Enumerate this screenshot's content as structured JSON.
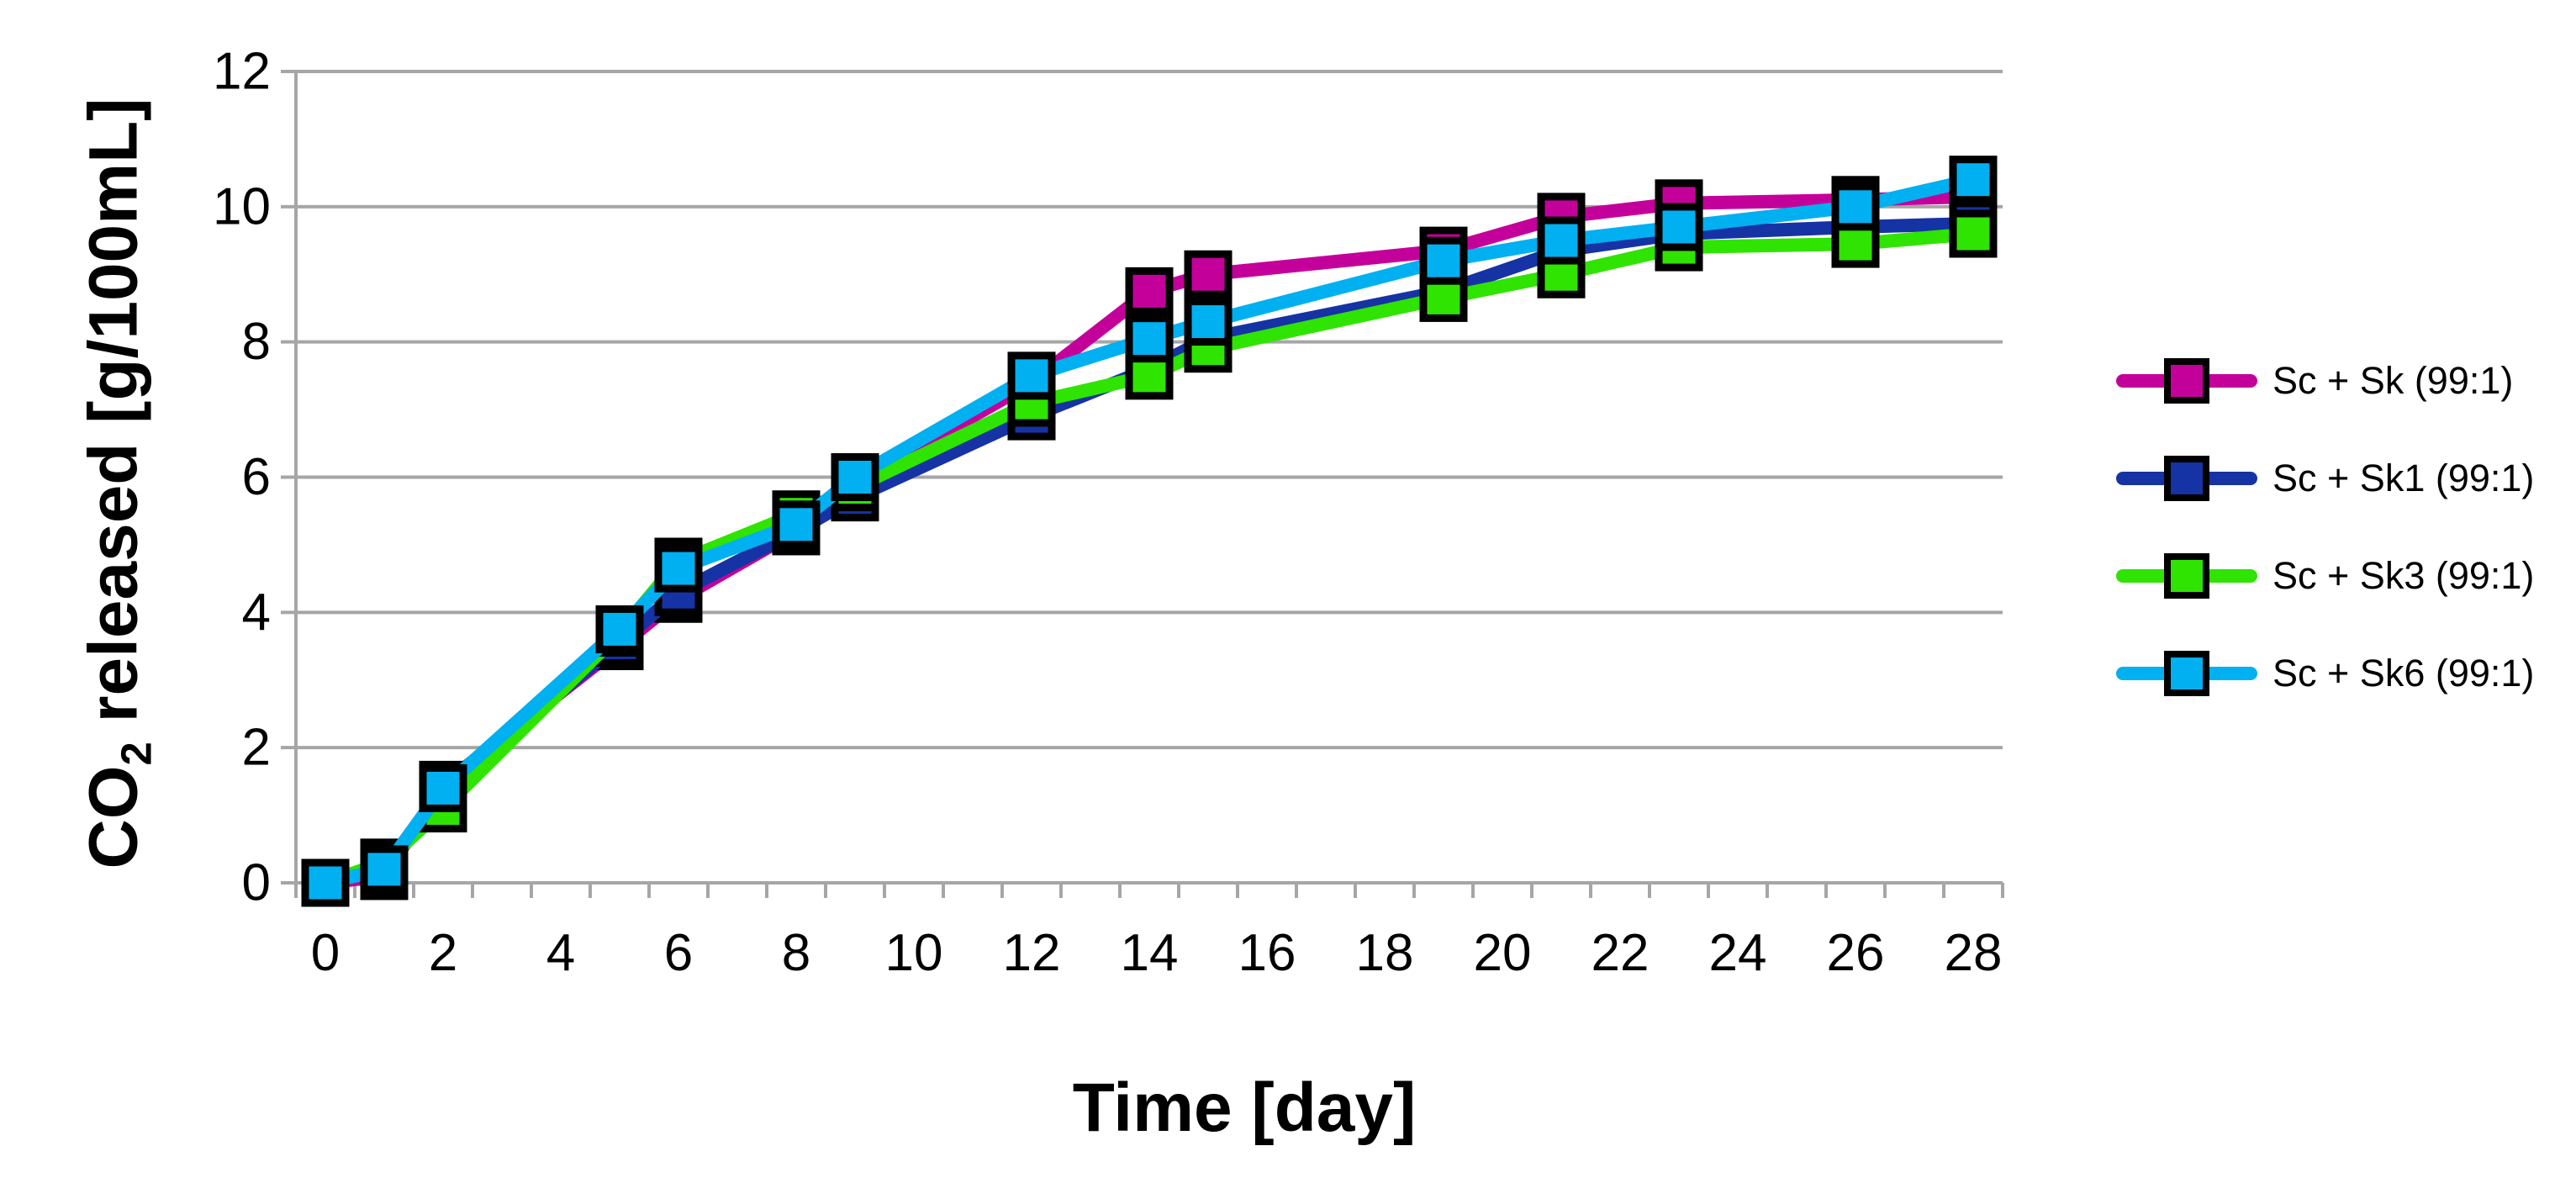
{
  "chart_data": {
    "type": "line",
    "title": "",
    "xlabel": "Time [day]",
    "ylabel": "CO2 released [g/100mL]",
    "ylabel_parts": {
      "pre": "CO",
      "sub": "2",
      "post": " released [g/100mL]"
    },
    "x": [
      0,
      1,
      2,
      5,
      6,
      8,
      9,
      12,
      14,
      15,
      19,
      21,
      23,
      26,
      28
    ],
    "series": [
      {
        "name": "Sc + Sk (99:1)",
        "color": "#C4009B",
        "values": [
          0,
          0.1,
          1.45,
          3.5,
          4.2,
          5.2,
          5.9,
          7.4,
          8.75,
          9.0,
          9.35,
          9.85,
          10.05,
          10.1,
          10.15
        ]
      },
      {
        "name": "Sc + Sk1 (99:1)",
        "color": "#1533A4",
        "values": [
          0,
          0.2,
          1.4,
          3.55,
          4.3,
          5.2,
          5.7,
          6.9,
          7.6,
          8.05,
          8.75,
          9.35,
          9.6,
          9.7,
          9.75
        ]
      },
      {
        "name": "Sc + Sk3 (99:1)",
        "color": "#2EE400",
        "values": [
          0,
          0.3,
          1.1,
          3.7,
          4.75,
          5.45,
          5.85,
          7.1,
          7.5,
          7.9,
          8.65,
          9.0,
          9.4,
          9.45,
          9.6
        ]
      },
      {
        "name": "Sc + Sk6 (99:1)",
        "color": "#00B0F0",
        "values": [
          0,
          0.2,
          1.4,
          3.75,
          4.65,
          5.3,
          6.0,
          7.5,
          8.05,
          8.3,
          9.2,
          9.5,
          9.7,
          10.0,
          10.4
        ]
      }
    ],
    "xlim": [
      -0.5,
      28.5
    ],
    "ylim": [
      0,
      12
    ],
    "x_tick_labels": [
      0,
      2,
      4,
      6,
      8,
      10,
      12,
      14,
      16,
      18,
      20,
      22,
      24,
      26,
      28
    ],
    "y_tick_labels": [
      0,
      2,
      4,
      6,
      8,
      10,
      12
    ],
    "x_minor_tick_step": 1,
    "grid": "horizontal",
    "legend_position": "right",
    "marker": "square"
  },
  "axes": {
    "x": {
      "title": "Time [day]"
    },
    "y": {
      "title_pre": "CO",
      "title_sub": "2",
      "title_post": " released [g/100mL]"
    }
  },
  "style": {
    "grid_color": "#A6A6A6",
    "axis_color": "#A6A6A6",
    "text_color": "#000000",
    "marker_border_color": "#000000",
    "background": "#FFFFFF"
  }
}
